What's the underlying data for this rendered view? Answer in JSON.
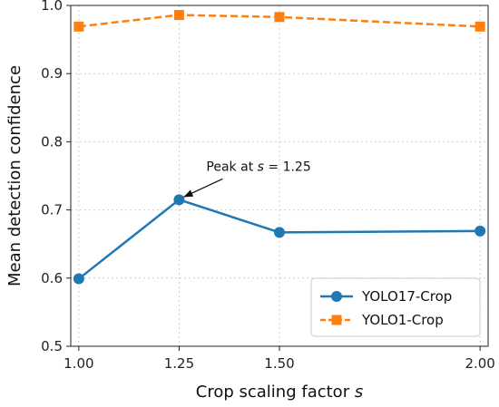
{
  "chart_data": {
    "type": "line",
    "xlabel": "Crop scaling factor s",
    "ylabel": "Mean detection confidence",
    "xlim": [
      0.98,
      2.02
    ],
    "ylim": [
      0.5,
      1.0
    ],
    "x_ticks": [
      1.0,
      1.25,
      1.5,
      2.0
    ],
    "x_tick_labels": [
      "1.00",
      "1.25",
      "1.50",
      "2.00"
    ],
    "y_ticks": [
      0.5,
      0.6,
      0.7,
      0.8,
      0.9,
      1.0
    ],
    "y_tick_labels": [
      "0.5",
      "0.6",
      "0.7",
      "0.8",
      "0.9",
      "1.0"
    ],
    "grid": true,
    "legend_position": "lower-right",
    "series": [
      {
        "name": "YOLO17-Crop",
        "x": [
          1.0,
          1.25,
          1.5,
          2.0
        ],
        "values": [
          0.599,
          0.715,
          0.667,
          0.669
        ],
        "color": "#1f77b4",
        "line_style": "solid",
        "marker": "circle"
      },
      {
        "name": "YOLO1-Crop",
        "x": [
          1.0,
          1.25,
          1.5,
          2.0
        ],
        "values": [
          0.969,
          0.986,
          0.983,
          0.969
        ],
        "color": "#ff7f0e",
        "line_style": "dashed",
        "marker": "square"
      }
    ],
    "annotations": [
      {
        "text": "Peak at s = 1.25",
        "x": 1.25,
        "y": 0.715
      }
    ]
  }
}
